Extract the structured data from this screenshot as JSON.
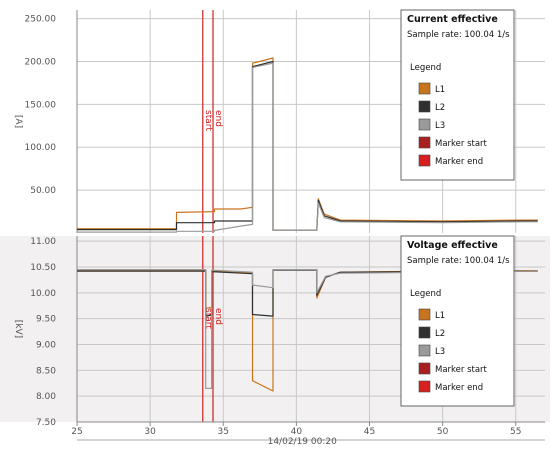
{
  "chart_data": [
    {
      "type": "line",
      "title": "Current effective",
      "subtitle": "Sample rate: 100.04 1/s",
      "legend_title": "Legend",
      "ylabel": "[A]",
      "ylim": [
        0,
        260
      ],
      "yticks": [
        "250.00",
        "200.00",
        "150.00",
        "100.00",
        "50.00"
      ],
      "ytick_values": [
        250,
        200,
        150,
        100,
        50
      ],
      "legend_position": "top-right",
      "legend_entries": [
        "L1",
        "L2",
        "L3",
        "Marker start",
        "Marker end"
      ],
      "series": [
        {
          "name": "L1",
          "color": "#c8741e",
          "x": [
            25,
            31.8,
            31.8,
            34.4,
            34.4,
            36.2,
            37,
            37,
            38.4,
            38.4,
            41.4,
            41.5,
            41.9,
            43,
            50,
            55.5,
            56.5
          ],
          "y": [
            5,
            5,
            24,
            25,
            28,
            28,
            30,
            198,
            204,
            3,
            3,
            40,
            22,
            15,
            14,
            15,
            15
          ]
        },
        {
          "name": "L2",
          "color": "#303030",
          "x": [
            25,
            31.8,
            31.8,
            34.4,
            34.4,
            36.2,
            37,
            37,
            38.4,
            38.4,
            41.4,
            41.5,
            41.9,
            43,
            50,
            55.5,
            56.5
          ],
          "y": [
            4,
            4,
            12,
            12,
            14,
            14,
            14,
            194,
            200,
            3,
            3,
            38,
            20,
            14,
            13,
            14,
            14
          ]
        },
        {
          "name": "L3",
          "color": "#9a9a9a",
          "x": [
            25,
            31.8,
            31.8,
            34.4,
            34.4,
            36.2,
            37,
            37,
            38.4,
            38.4,
            41.4,
            41.5,
            41.9,
            43,
            50,
            55.5,
            56.5
          ],
          "y": [
            1,
            1,
            2,
            2,
            3,
            8,
            10,
            193,
            198,
            3,
            3,
            35,
            18,
            13,
            12,
            13,
            13
          ]
        }
      ]
    },
    {
      "type": "line",
      "title": "Voltage effective",
      "subtitle": "Sample rate: 100.04 1/s",
      "legend_title": "Legend",
      "ylabel": "[kV]",
      "ylim": [
        7.5,
        11.1
      ],
      "yticks": [
        "11.00",
        "10.50",
        "10.00",
        "9.50",
        "9.00",
        "8.50",
        "8.00",
        "7.50"
      ],
      "ytick_values": [
        11,
        10.5,
        10,
        9.5,
        9,
        8.5,
        8,
        7.5
      ],
      "legend_position": "top-right",
      "legend_entries": [
        "L1",
        "L2",
        "L3",
        "Marker start",
        "Marker end"
      ],
      "xlabel": "14/02/19 00:20",
      "xlim": [
        25,
        57
      ],
      "xticks": [
        "25",
        "30",
        "35",
        "40",
        "45",
        "50",
        "55"
      ],
      "xtick_values": [
        25,
        30,
        35,
        40,
        45,
        50,
        55
      ],
      "series": [
        {
          "name": "L1",
          "color": "#c8741e",
          "x": [
            25,
            33.8,
            33.8,
            34.2,
            34.2,
            37,
            37,
            38.4,
            38.4,
            41.4,
            41.4,
            42,
            43,
            50,
            56.5
          ],
          "y": [
            10.43,
            10.43,
            9.7,
            9.72,
            10.42,
            10.38,
            8.3,
            8.1,
            10.45,
            10.45,
            9.9,
            10.3,
            10.4,
            10.42,
            10.43
          ]
        },
        {
          "name": "L2",
          "color": "#303030",
          "x": [
            25,
            33.8,
            33.8,
            34.2,
            34.2,
            37,
            37,
            38.4,
            38.4,
            41.4,
            41.4,
            42,
            43,
            50,
            56.5
          ],
          "y": [
            10.42,
            10.42,
            9.55,
            9.57,
            10.41,
            10.37,
            9.58,
            9.55,
            10.44,
            10.44,
            9.95,
            10.3,
            10.4,
            10.41,
            10.42
          ]
        },
        {
          "name": "L3",
          "color": "#9a9a9a",
          "x": [
            25,
            33.8,
            33.8,
            34.2,
            34.2,
            37,
            37,
            38.4,
            38.4,
            41.4,
            41.4,
            42,
            43,
            50,
            56.5
          ],
          "y": [
            10.45,
            10.45,
            8.15,
            8.15,
            10.44,
            10.4,
            10.15,
            10.1,
            10.45,
            10.45,
            10.0,
            10.32,
            10.38,
            10.4,
            10.42
          ]
        }
      ]
    }
  ],
  "markers": {
    "start_label": "start",
    "end_label": "end",
    "start_x": 33.6,
    "end_x": 34.3,
    "color": "#d02020"
  }
}
